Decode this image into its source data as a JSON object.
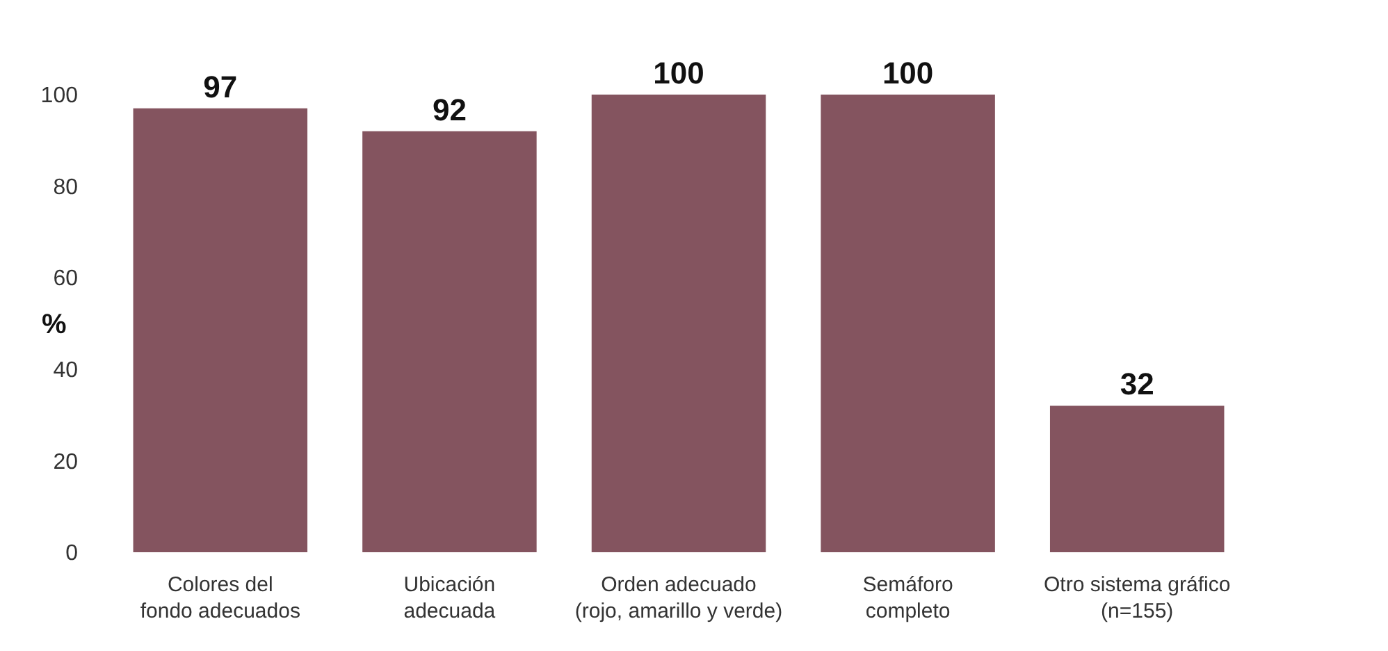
{
  "chart_data": {
    "type": "bar",
    "ylabel": "%",
    "categories": [
      "Colores del\nfondo adecuados",
      "Ubicación\nadecuada",
      "Orden adecuado\n(rojo, amarillo y verde)",
      "Semáforo\ncompleto",
      "Otro sistema gráfico\n(n=155)"
    ],
    "values": [
      97,
      92,
      100,
      100,
      32
    ],
    "color": "#84545f",
    "ylim": [
      0,
      100
    ],
    "yticks": [
      0,
      20,
      40,
      60,
      80,
      100
    ],
    "data_labels": true
  }
}
